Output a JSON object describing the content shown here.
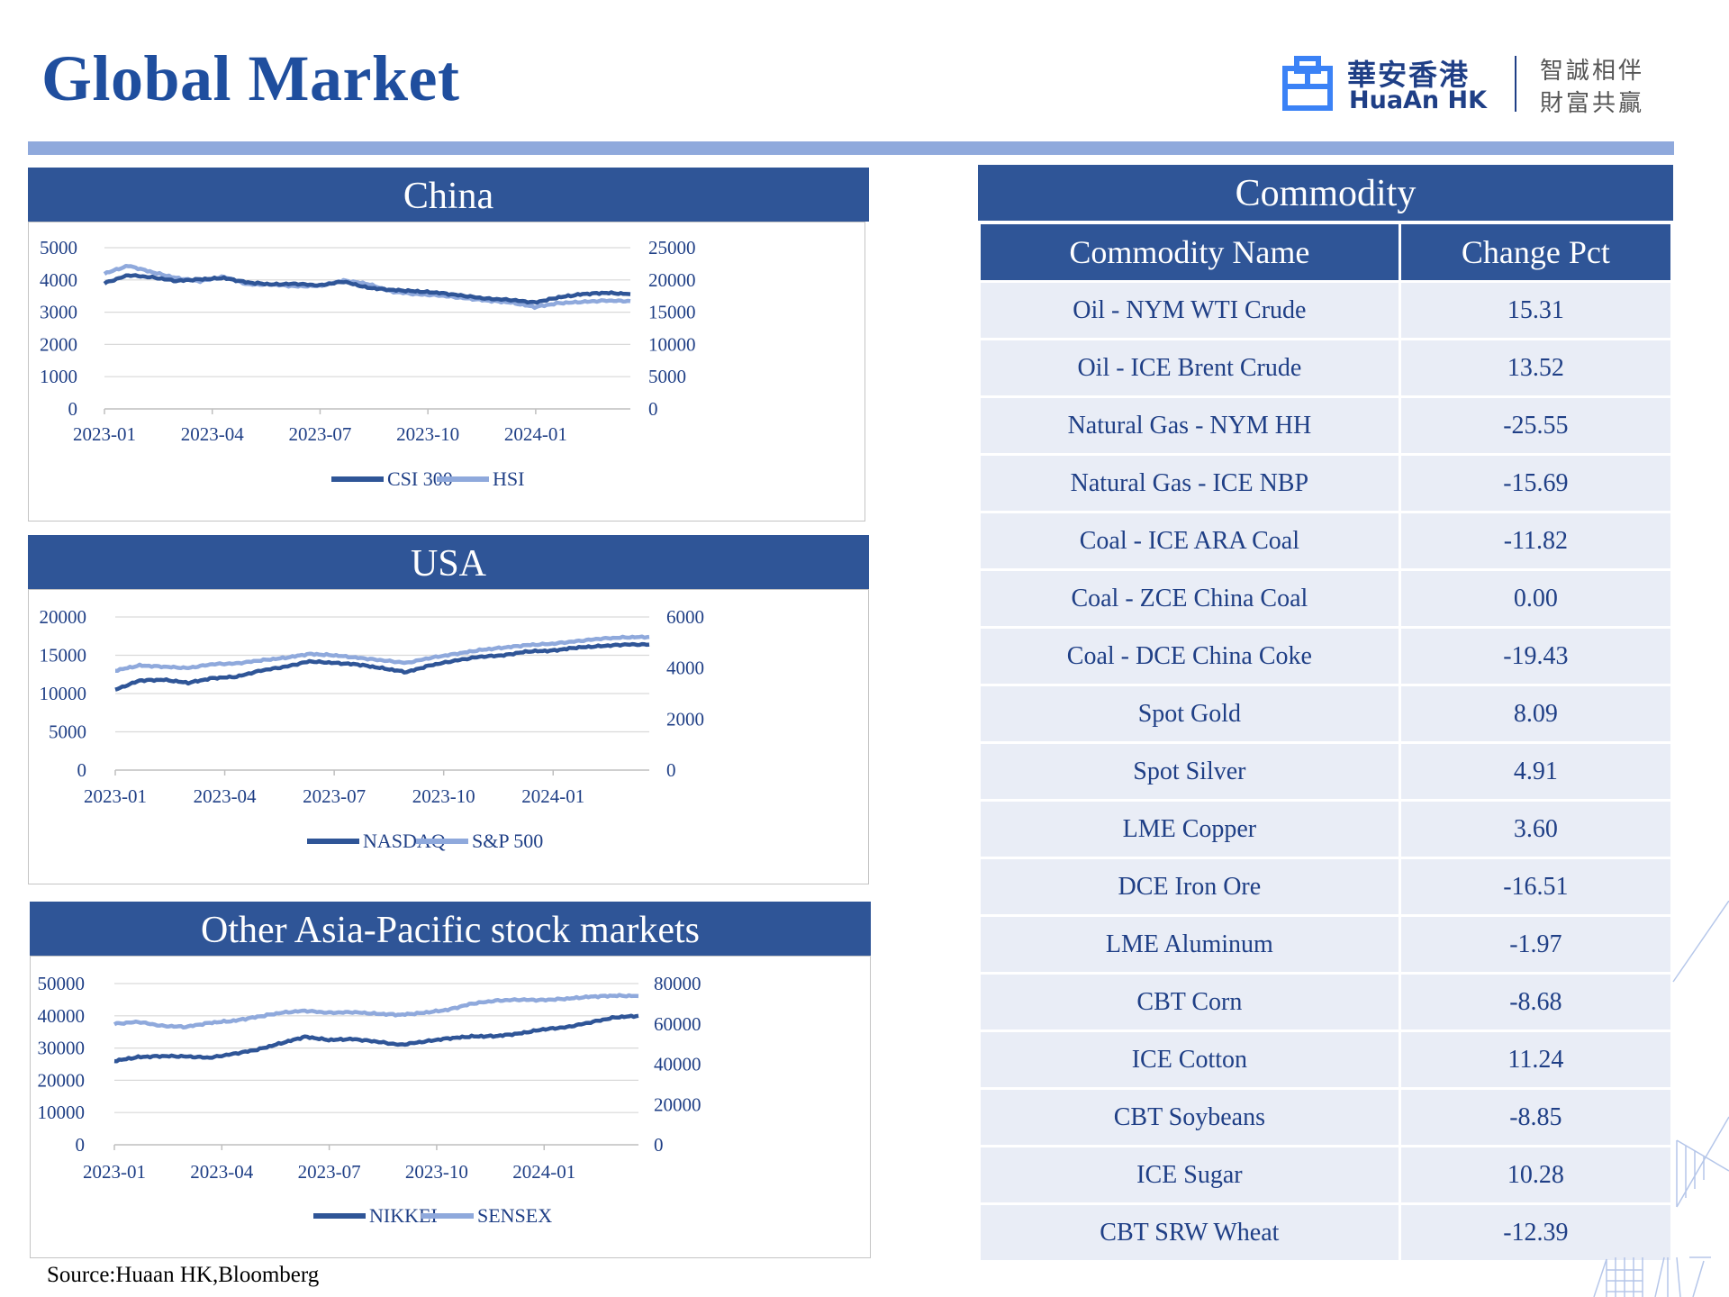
{
  "page": {
    "title": "Global Market",
    "source": "Source:Huaan HK,Bloomberg"
  },
  "logo": {
    "chinese_name": "華安香港",
    "english_name": "HuaAn HK",
    "slogan_line1": "智誠相伴",
    "slogan_line2": "財富共贏"
  },
  "colors": {
    "header_bg": "#2f5597",
    "series_dark": "#2f5597",
    "series_light": "#8fa9dc",
    "table_cell_bg": "#e9edf6"
  },
  "panels": {
    "china": {
      "title": "China"
    },
    "usa": {
      "title": "USA"
    },
    "asia": {
      "title": "Other Asia-Pacific stock markets"
    }
  },
  "chart_data": [
    {
      "id": "china",
      "type": "line",
      "title": "China",
      "x_ticks": [
        "2023-01",
        "2023-04",
        "2023-07",
        "2023-10",
        "2024-01"
      ],
      "left_axis": {
        "ticks": [
          "0",
          "1000",
          "2000",
          "3000",
          "4000",
          "5000"
        ],
        "ylim": [
          0,
          5000
        ]
      },
      "right_axis": {
        "ticks": [
          "0",
          "5000",
          "10000",
          "15000",
          "20000",
          "25000"
        ],
        "ylim": [
          0,
          25000
        ]
      },
      "legend_position": "bottom",
      "gridlines": true,
      "series": [
        {
          "name": "CSI 300",
          "axis": "left",
          "color": "#2f5597",
          "values": [
            3900,
            4150,
            4080,
            3970,
            4020,
            4060,
            3920,
            3860,
            3880,
            3830,
            3950,
            3760,
            3690,
            3650,
            3600,
            3510,
            3420,
            3380,
            3300,
            3460,
            3560,
            3600,
            3560
          ]
        },
        {
          "name": "HSI",
          "axis": "right",
          "color": "#8fa9dc",
          "values": [
            21000,
            22200,
            21200,
            20300,
            19800,
            20500,
            19300,
            19300,
            19000,
            19100,
            19900,
            19400,
            18200,
            17800,
            17600,
            17200,
            16800,
            16500,
            15800,
            16400,
            16600,
            16800,
            16700
          ]
        }
      ]
    },
    {
      "id": "usa",
      "type": "line",
      "title": "USA",
      "x_ticks": [
        "2023-01",
        "2023-04",
        "2023-07",
        "2023-10",
        "2024-01"
      ],
      "left_axis": {
        "ticks": [
          "0",
          "5000",
          "10000",
          "15000",
          "20000"
        ],
        "ylim": [
          0,
          20000
        ]
      },
      "right_axis": {
        "ticks": [
          "0",
          "2000",
          "4000",
          "6000"
        ],
        "ylim": [
          0,
          6000
        ]
      },
      "legend_position": "bottom",
      "gridlines": true,
      "series": [
        {
          "name": "NASDAQ",
          "axis": "left",
          "color": "#2f5597",
          "values": [
            10500,
            11700,
            11800,
            11400,
            12000,
            12200,
            13000,
            13500,
            14200,
            14000,
            13800,
            13300,
            12800,
            13700,
            14300,
            14800,
            15000,
            15500,
            15600,
            16000,
            16200,
            16400,
            16400
          ]
        },
        {
          "name": "S&P 500",
          "axis": "right",
          "color": "#8fa9dc",
          "values": [
            3900,
            4100,
            4050,
            4000,
            4150,
            4180,
            4300,
            4400,
            4550,
            4500,
            4400,
            4300,
            4200,
            4400,
            4550,
            4700,
            4800,
            4900,
            4950,
            5050,
            5150,
            5200,
            5220
          ]
        }
      ]
    },
    {
      "id": "asia",
      "type": "line",
      "title": "Other Asia-Pacific stock markets",
      "x_ticks": [
        "2023-01",
        "2023-04",
        "2023-07",
        "2023-10",
        "2024-01"
      ],
      "left_axis": {
        "ticks": [
          "0",
          "10000",
          "20000",
          "30000",
          "40000",
          "50000"
        ],
        "ylim": [
          0,
          50000
        ]
      },
      "right_axis": {
        "ticks": [
          "0",
          "20000",
          "40000",
          "60000",
          "80000"
        ],
        "ylim": [
          0,
          80000
        ]
      },
      "legend_position": "bottom",
      "gridlines": true,
      "series": [
        {
          "name": "NIKKEI",
          "axis": "left",
          "color": "#2f5597",
          "values": [
            26000,
            27200,
            27500,
            27400,
            27000,
            28200,
            29500,
            31500,
            33500,
            32500,
            32800,
            32000,
            31000,
            32000,
            33000,
            33600,
            33700,
            34500,
            35800,
            36500,
            38000,
            39500,
            40000
          ]
        },
        {
          "name": "SENSEX",
          "axis": "right",
          "color": "#8fa9dc",
          "values": [
            60000,
            61000,
            59000,
            58500,
            60500,
            61500,
            63500,
            65500,
            66500,
            65500,
            65800,
            65000,
            64500,
            65500,
            67000,
            70000,
            71500,
            72000,
            71800,
            72500,
            73500,
            74000,
            73800
          ]
        }
      ]
    }
  ],
  "commodity": {
    "title": "Commodity",
    "headers": [
      "Commodity Name",
      "Change Pct"
    ],
    "rows": [
      [
        "Oil - NYM WTI Crude",
        "15.31"
      ],
      [
        "Oil - ICE Brent Crude",
        "13.52"
      ],
      [
        "Natural Gas - NYM HH",
        "-25.55"
      ],
      [
        "Natural Gas - ICE NBP",
        "-15.69"
      ],
      [
        "Coal - ICE ARA Coal",
        "-11.82"
      ],
      [
        "Coal - ZCE China Coal",
        "0.00"
      ],
      [
        "Coal - DCE China Coke",
        "-19.43"
      ],
      [
        "Spot Gold",
        "8.09"
      ],
      [
        "Spot Silver",
        "4.91"
      ],
      [
        "LME Copper",
        "3.60"
      ],
      [
        "DCE Iron Ore",
        "-16.51"
      ],
      [
        "LME Aluminum",
        "-1.97"
      ],
      [
        "CBT Corn",
        "-8.68"
      ],
      [
        "ICE Cotton",
        "11.24"
      ],
      [
        "CBT Soybeans",
        "-8.85"
      ],
      [
        "ICE Sugar",
        "10.28"
      ],
      [
        "CBT SRW Wheat",
        "-12.39"
      ]
    ]
  }
}
